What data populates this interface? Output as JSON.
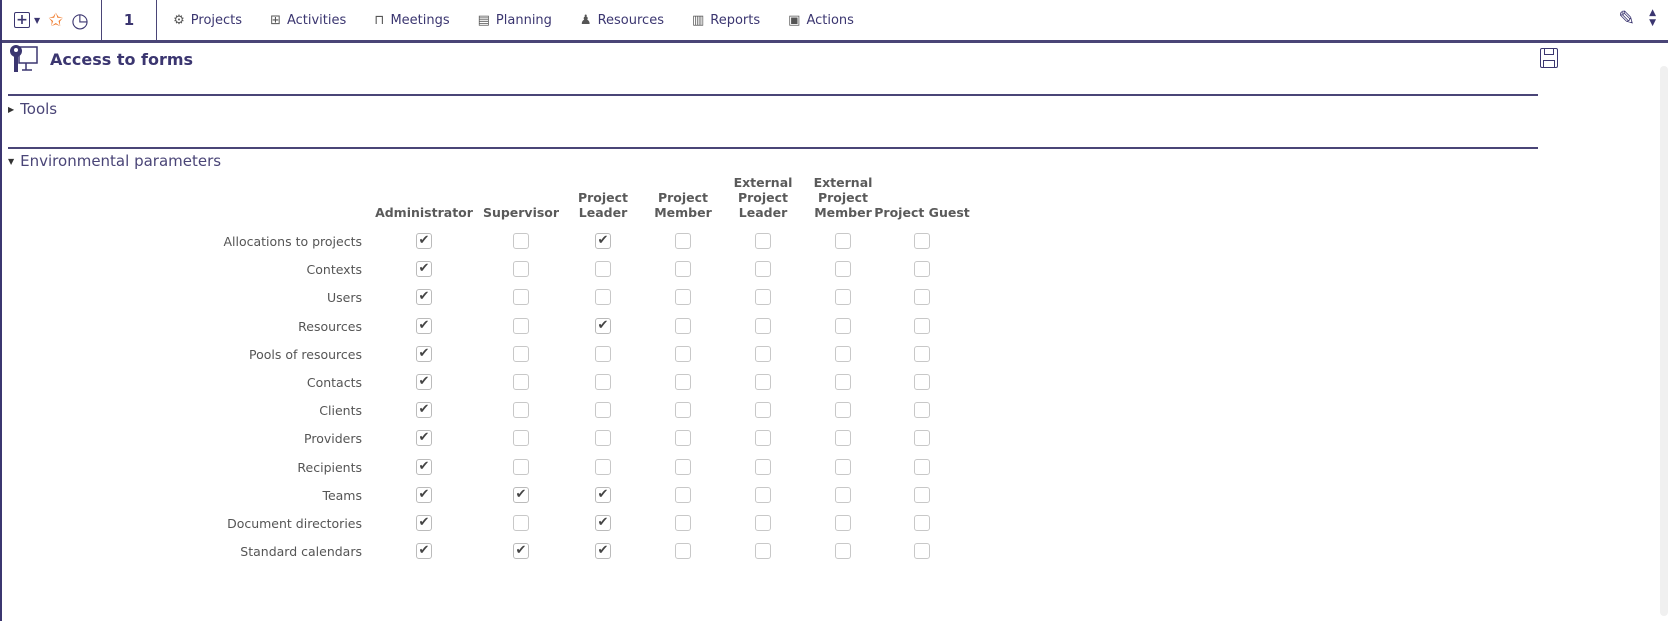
{
  "toolbar": {
    "count": "1",
    "nav": [
      {
        "label": "Projects",
        "icon": "gear-icon",
        "glyph": "⚙"
      },
      {
        "label": "Activities",
        "icon": "activities-icon",
        "glyph": "⊞"
      },
      {
        "label": "Meetings",
        "icon": "meeting-table-icon",
        "glyph": "⊓"
      },
      {
        "label": "Planning",
        "icon": "planning-icon",
        "glyph": "▤"
      },
      {
        "label": "Resources",
        "icon": "person-icon",
        "glyph": "♟"
      },
      {
        "label": "Reports",
        "icon": "bar-chart-icon",
        "glyph": "▥"
      },
      {
        "label": "Actions",
        "icon": "actions-icon",
        "glyph": "▣"
      }
    ]
  },
  "page": {
    "title": "Access to forms"
  },
  "sections": {
    "tools": "Tools",
    "env": "Environmental parameters"
  },
  "columns": [
    "Administrator",
    "Supervisor",
    "Project Leader",
    "Project Member",
    "External Project Leader",
    "External Project Member",
    "Project Guest"
  ],
  "rows": [
    {
      "label": "Allocations to projects",
      "checked": [
        true,
        false,
        true,
        false,
        false,
        false,
        false
      ]
    },
    {
      "label": "Contexts",
      "checked": [
        true,
        false,
        false,
        false,
        false,
        false,
        false
      ]
    },
    {
      "label": "Users",
      "checked": [
        true,
        false,
        false,
        false,
        false,
        false,
        false
      ]
    },
    {
      "label": "Resources",
      "checked": [
        true,
        false,
        true,
        false,
        false,
        false,
        false
      ]
    },
    {
      "label": "Pools of resources",
      "checked": [
        true,
        false,
        false,
        false,
        false,
        false,
        false
      ]
    },
    {
      "label": "Contacts",
      "checked": [
        true,
        false,
        false,
        false,
        false,
        false,
        false
      ]
    },
    {
      "label": "Clients",
      "checked": [
        true,
        false,
        false,
        false,
        false,
        false,
        false
      ]
    },
    {
      "label": "Providers",
      "checked": [
        true,
        false,
        false,
        false,
        false,
        false,
        false
      ]
    },
    {
      "label": "Recipients",
      "checked": [
        true,
        false,
        false,
        false,
        false,
        false,
        false
      ]
    },
    {
      "label": "Teams",
      "checked": [
        true,
        true,
        true,
        false,
        false,
        false,
        false
      ]
    },
    {
      "label": "Document directories",
      "checked": [
        true,
        false,
        true,
        false,
        false,
        false,
        false
      ]
    },
    {
      "label": "Standard calendars",
      "checked": [
        true,
        true,
        true,
        false,
        false,
        false,
        false
      ]
    }
  ],
  "colors": {
    "accent": "#3b3670",
    "bookmark": "#f07a2a"
  }
}
